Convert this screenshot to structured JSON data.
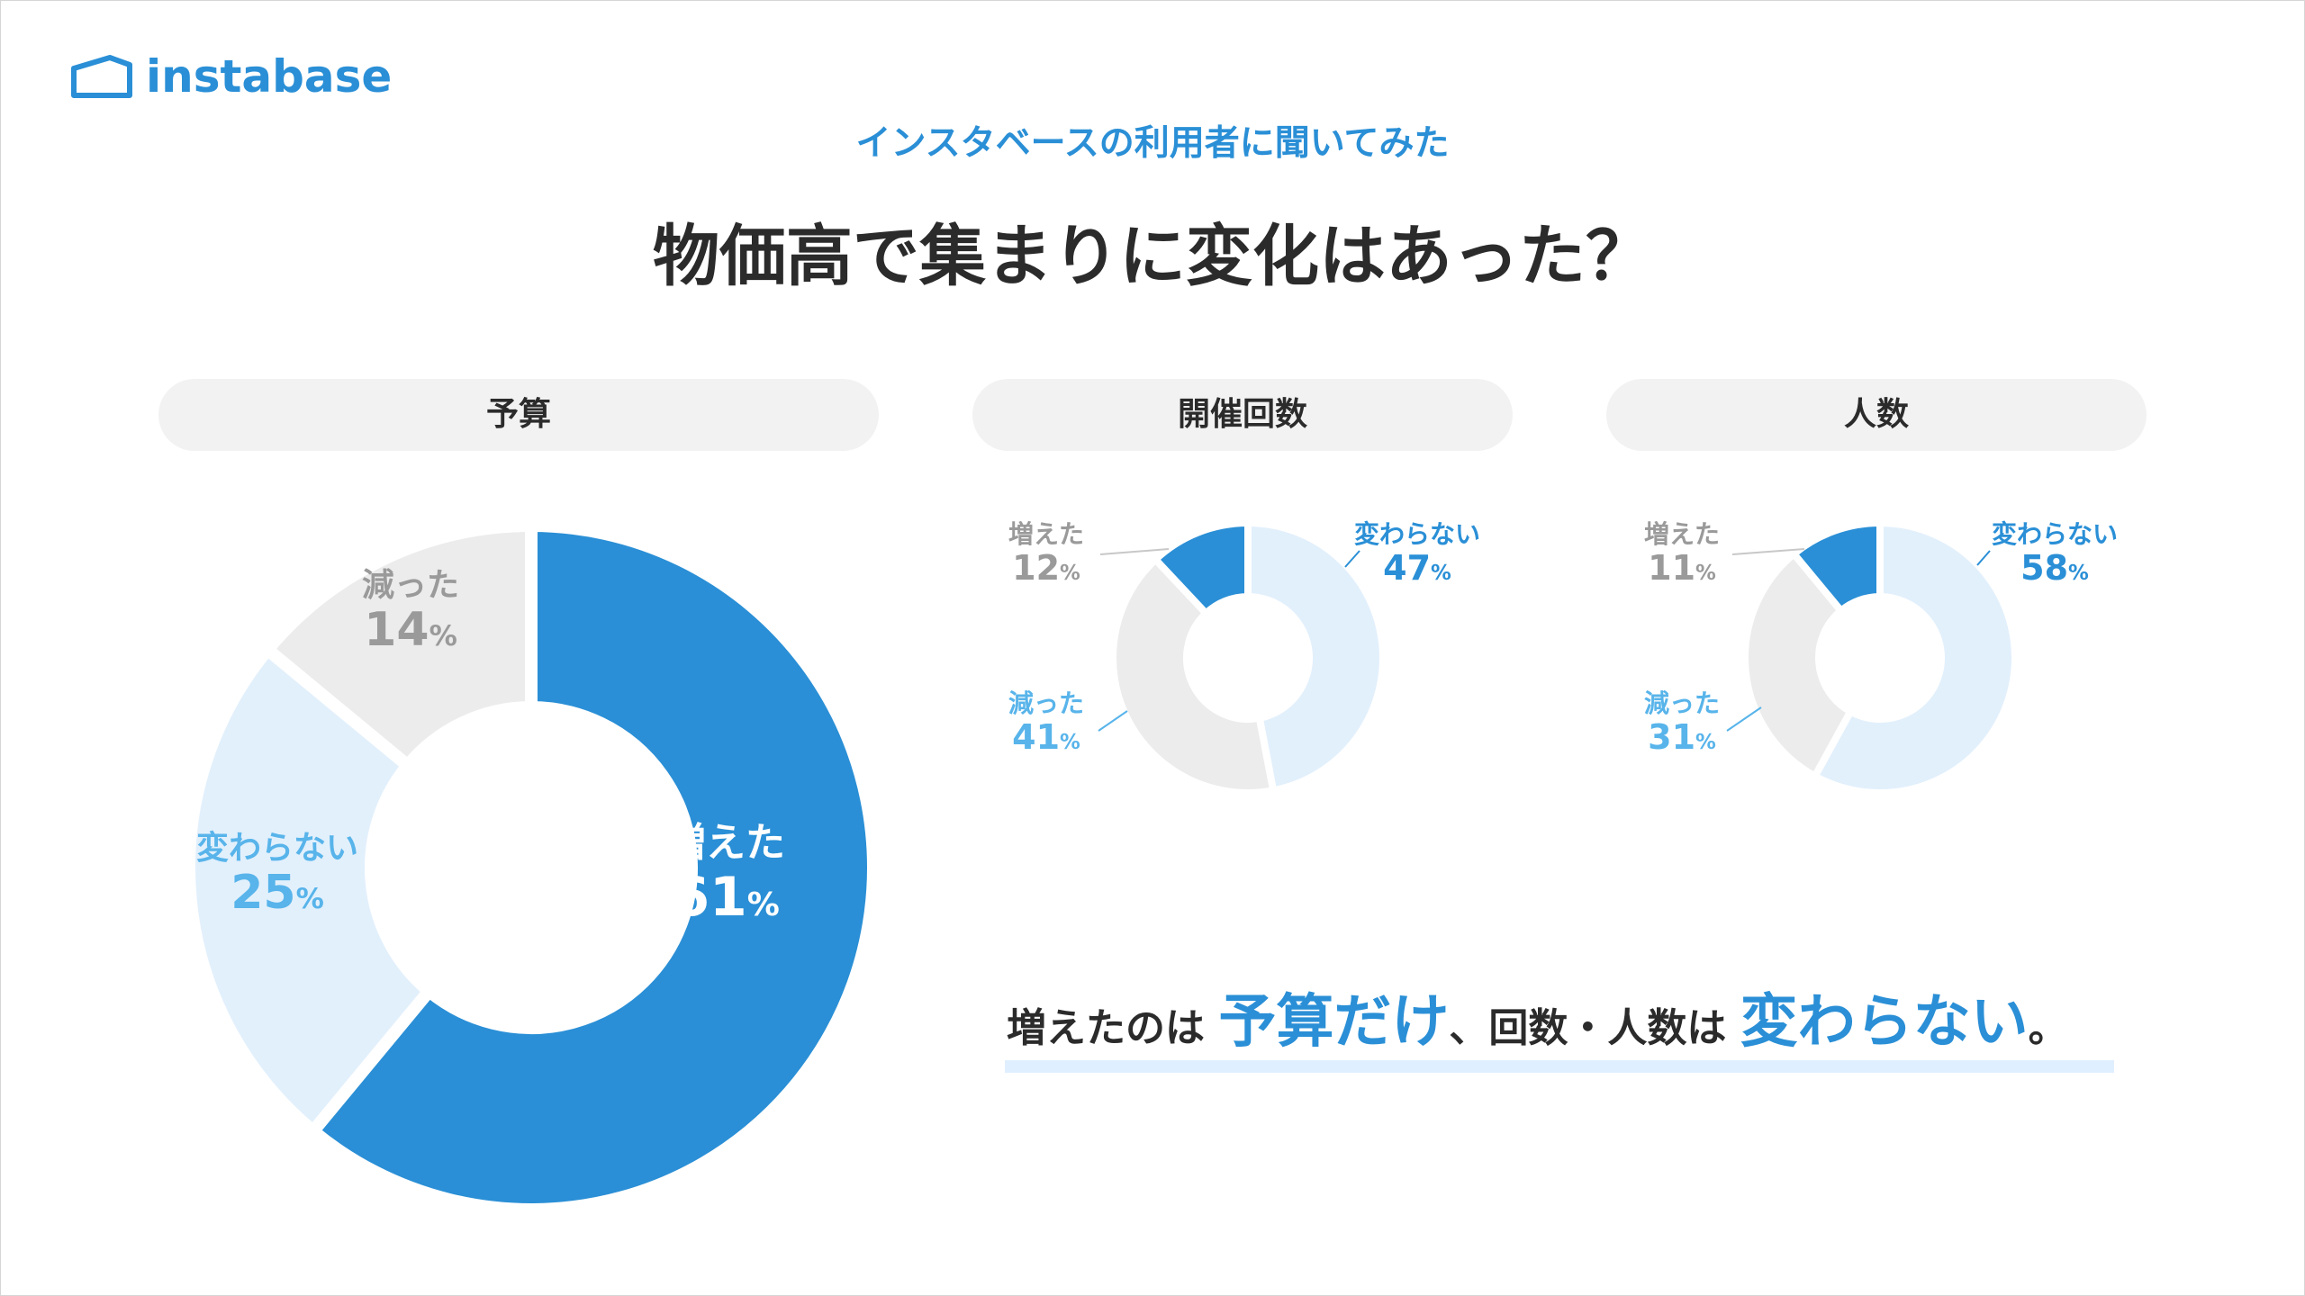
{
  "brand": {
    "name": "instabase",
    "icon": "house-outline-icon",
    "color": "#2a8fd6"
  },
  "header": {
    "subtitle": "インスタベースの利用者に聞いてみた",
    "title": "物価高で集まりに変化はあった？"
  },
  "colors": {
    "increased": "#2a8fd6",
    "unchanged": "#e2f0fc",
    "decreased": "#ececec",
    "label_blue": "#2a8fd6",
    "label_light": "#58b4ea",
    "label_gray": "#9a9a9a"
  },
  "chart_data": [
    {
      "type": "donut",
      "title": "予算",
      "order": [
        "増えた",
        "変わらない",
        "減った"
      ],
      "categories": [
        "増えた",
        "変わらない",
        "減った"
      ],
      "values": [
        61,
        25,
        14
      ],
      "unit": "%"
    },
    {
      "type": "donut",
      "title": "開催回数",
      "order": [
        "変わらない",
        "減った",
        "増えた"
      ],
      "categories": [
        "変わらない",
        "減った",
        "増えた"
      ],
      "values": [
        47,
        41,
        12
      ],
      "unit": "%"
    },
    {
      "type": "donut",
      "title": "人数",
      "order": [
        "変わらない",
        "減った",
        "増えた"
      ],
      "categories": [
        "変わらない",
        "減った",
        "増えた"
      ],
      "values": [
        58,
        31,
        11
      ],
      "unit": "%"
    }
  ],
  "pct_symbol": "%",
  "summary": {
    "part1": "増えたのは",
    "hl1": "予算だけ",
    "part2": "、回数・人数は",
    "hl2": "変わらない",
    "part3": "。"
  }
}
